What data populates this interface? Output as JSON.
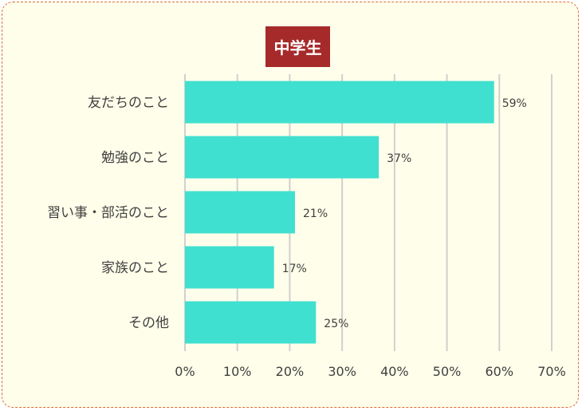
{
  "chart_data": {
    "type": "bar",
    "orientation": "horizontal",
    "title": "中学生",
    "categories": [
      "友だちのこと",
      "勉強のこと",
      "習い事・部活のこと",
      "家族のこと",
      "その他"
    ],
    "values": [
      59,
      37,
      21,
      17,
      25
    ],
    "data_labels": [
      "59%",
      "37%",
      "21%",
      "17%",
      "25%"
    ],
    "xlim": [
      0,
      70
    ],
    "x_ticks": [
      0,
      10,
      20,
      30,
      40,
      50,
      60,
      70
    ],
    "x_tick_labels": [
      "0%",
      "10%",
      "20%",
      "30%",
      "40%",
      "50%",
      "60%",
      "70%"
    ],
    "grid": true,
    "colors": {
      "bar": "#40e0d0",
      "title_bg": "#a62a2a",
      "grid": "#d0d0d0",
      "background": "#fffeea",
      "border": "#e06a3a"
    }
  }
}
